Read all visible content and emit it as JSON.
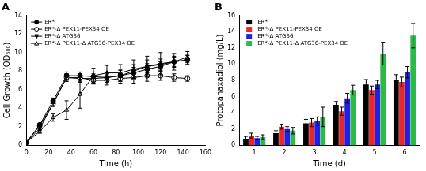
{
  "chart_data": [
    {
      "type": "line",
      "title": "A",
      "x_label": "Time (h)",
      "y_label": "Cell Growth (OD₆₀₀)",
      "x": [
        0,
        12,
        24,
        36,
        48,
        60,
        72,
        84,
        96,
        108,
        120,
        132,
        144
      ],
      "xlim": [
        0,
        160
      ],
      "xticks": [
        0,
        20,
        40,
        60,
        80,
        100,
        120,
        140,
        160
      ],
      "ylim": [
        0,
        14
      ],
      "yticks": [
        0,
        2,
        4,
        6,
        8,
        10,
        12,
        14
      ],
      "grid": false,
      "legend": "upper left",
      "series": [
        {
          "name": "ER*",
          "color": "#000000",
          "marker": "circle",
          "line_style": "solid",
          "values": [
            0.3,
            2.2,
            4.8,
            7.5,
            7.5,
            7.4,
            7.3,
            7.5,
            7.8,
            8.2,
            8.5,
            9.0,
            9.2
          ],
          "errors": [
            0.1,
            0.2,
            0.3,
            0.4,
            0.4,
            0.5,
            0.5,
            0.6,
            0.6,
            0.6,
            0.5,
            0.5,
            0.5
          ]
        },
        {
          "name": "ER*-Δ PEX11-PEX34 OE",
          "color": "#000000",
          "marker": "circle_open",
          "line_style": "solid",
          "values": [
            0.3,
            2.1,
            4.5,
            7.3,
            7.3,
            7.0,
            7.0,
            7.2,
            7.3,
            7.5,
            7.5,
            7.3,
            7.2
          ],
          "errors": [
            0.1,
            0.2,
            0.3,
            0.4,
            0.4,
            0.4,
            0.5,
            0.5,
            0.6,
            0.6,
            0.5,
            0.4,
            0.3
          ]
        },
        {
          "name": "ER*-Δ ATG36",
          "color": "#000000",
          "marker": "triangle_down",
          "line_style": "solid",
          "values": [
            0.3,
            1.8,
            4.5,
            7.3,
            7.2,
            7.2,
            7.3,
            7.5,
            8.0,
            8.5,
            8.7,
            9.0,
            9.2
          ],
          "errors": [
            0.1,
            0.2,
            0.3,
            0.4,
            0.4,
            0.5,
            0.5,
            0.6,
            0.7,
            0.7,
            0.6,
            0.6,
            0.5
          ]
        },
        {
          "name": "ER*-Δ PEX11-Δ ATG36-PEX34 OE",
          "color": "#000000",
          "marker": "triangle_open",
          "line_style": "solid",
          "values": [
            0.3,
            1.5,
            3.0,
            3.8,
            5.5,
            7.5,
            7.8,
            7.8,
            8.2,
            8.5,
            8.8,
            9.0,
            9.5
          ],
          "errors": [
            0.1,
            0.2,
            0.4,
            1.0,
            1.5,
            0.8,
            0.8,
            0.9,
            1.0,
            1.1,
            1.2,
            0.9,
            0.6
          ]
        }
      ]
    },
    {
      "type": "bar",
      "title": "B",
      "x_label": "Time (d)",
      "y_label": "Protopanaxadiol (mg/L)",
      "categories": [
        "1",
        "2",
        "3",
        "4",
        "5",
        "6"
      ],
      "ylim": [
        0,
        16
      ],
      "yticks": [
        0,
        2,
        4,
        6,
        8,
        10,
        12,
        14,
        16
      ],
      "grid": false,
      "legend": "upper left",
      "series": [
        {
          "name": "ER*",
          "color": "#000000",
          "values": [
            0.8,
            1.5,
            2.7,
            5.0,
            7.5,
            8.0
          ],
          "errors": [
            0.3,
            0.3,
            0.5,
            0.4,
            0.6,
            0.7
          ]
        },
        {
          "name": "ER*-Δ PEX11-PEX34 OE",
          "color": "#e8262b",
          "values": [
            1.2,
            2.3,
            2.8,
            4.2,
            6.8,
            7.8
          ],
          "errors": [
            0.3,
            0.3,
            0.5,
            0.5,
            0.5,
            0.6
          ]
        },
        {
          "name": "ER*-Δ ATG36",
          "color": "#2020e0",
          "values": [
            0.9,
            2.0,
            3.0,
            5.8,
            7.5,
            9.0
          ],
          "errors": [
            0.2,
            0.3,
            0.5,
            0.6,
            0.5,
            0.7
          ]
        },
        {
          "name": "ER*-Δ PEX11-Δ ATG36-PEX34 OE",
          "color": "#2db84a",
          "values": [
            1.0,
            1.8,
            3.5,
            6.8,
            11.3,
            13.5
          ],
          "errors": [
            0.3,
            0.4,
            1.2,
            0.6,
            1.4,
            1.5
          ]
        }
      ]
    }
  ]
}
